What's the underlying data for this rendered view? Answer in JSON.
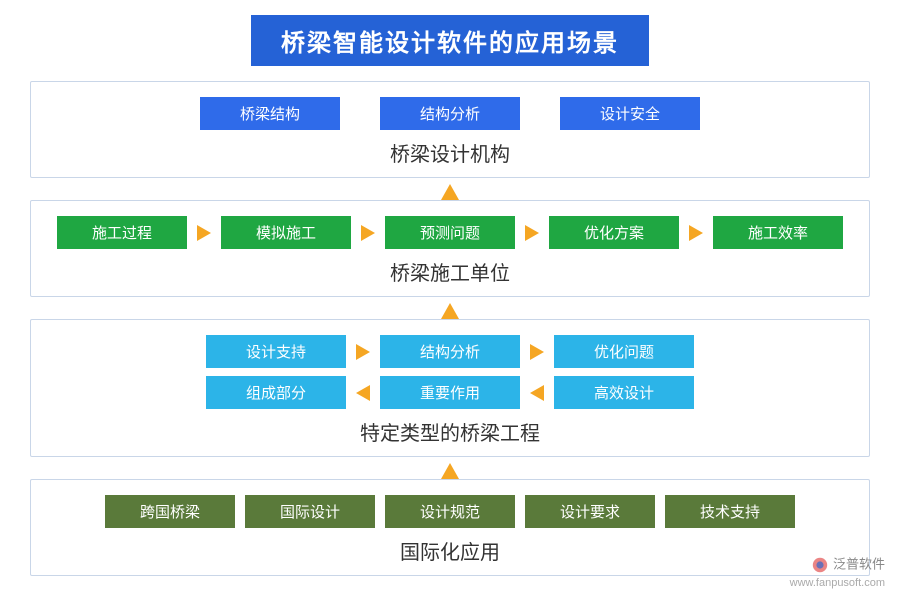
{
  "title": "桥梁智能设计软件的应用场景",
  "colors": {
    "title_bg": "#2562d6",
    "blue": "#2f6bea",
    "green": "#1fa742",
    "cyan": "#2cb4e8",
    "olive": "#5a7a3a",
    "arrow": "#f5a623",
    "border": "#c9d6e8",
    "text": "#333333",
    "bg": "#ffffff"
  },
  "sections": [
    {
      "label": "桥梁设计机构",
      "color": "blue",
      "rows": [
        {
          "items": [
            "桥梁结构",
            "结构分析",
            "设计安全"
          ],
          "arrows": "none"
        }
      ]
    },
    {
      "label": "桥梁施工单位",
      "color": "green",
      "rows": [
        {
          "items": [
            "施工过程",
            "模拟施工",
            "预测问题",
            "优化方案",
            "施工效率"
          ],
          "arrows": "right"
        }
      ]
    },
    {
      "label": "特定类型的桥梁工程",
      "color": "cyan",
      "rows": [
        {
          "items": [
            "设计支持",
            "结构分析",
            "优化问题"
          ],
          "arrows": "right"
        },
        {
          "items": [
            "组成部分",
            "重要作用",
            "高效设计"
          ],
          "arrows": "left"
        }
      ]
    },
    {
      "label": "国际化应用",
      "color": "olive",
      "rows": [
        {
          "items": [
            "跨国桥梁",
            "国际设计",
            "设计规范",
            "设计要求",
            "技术支持"
          ],
          "arrows": "none"
        }
      ]
    }
  ],
  "watermark": {
    "brand": "泛普软件",
    "url": "www.fanpusoft.com"
  }
}
